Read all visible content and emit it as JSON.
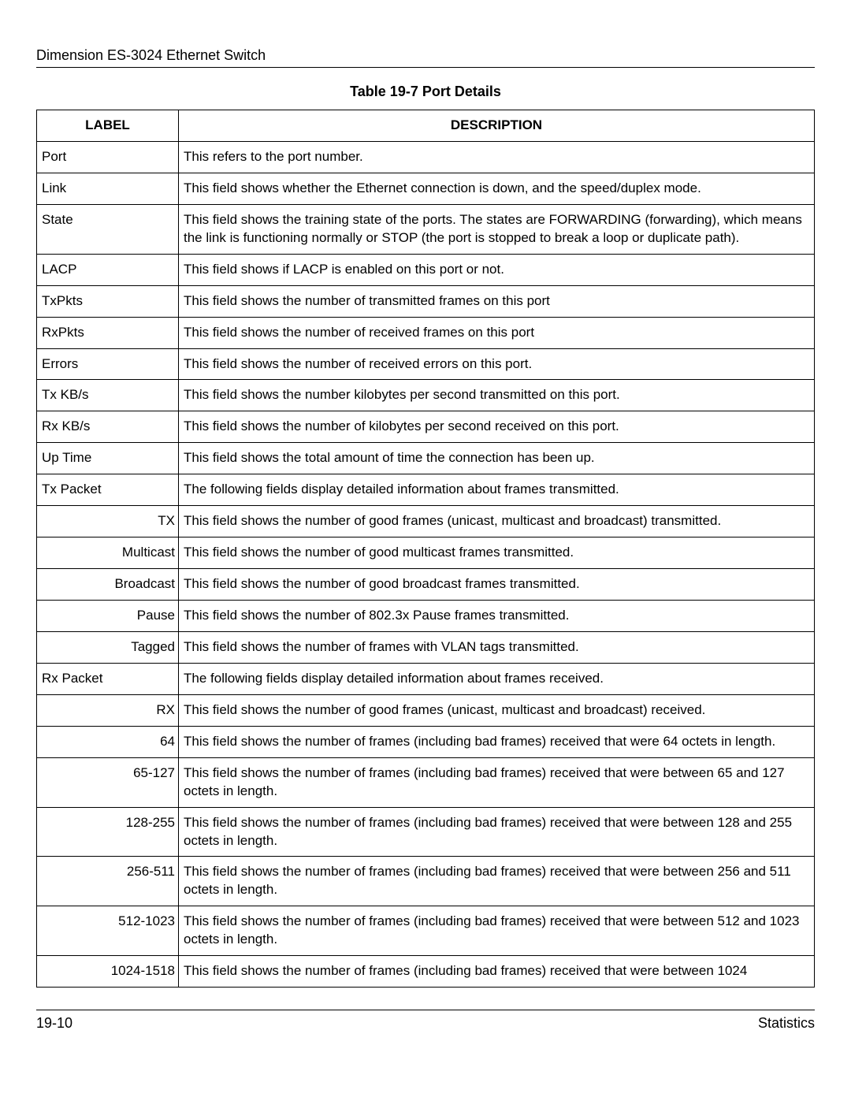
{
  "header": {
    "title": "Dimension ES-3024 Ethernet Switch"
  },
  "table": {
    "caption": "Table 19-7 Port Details",
    "columns": {
      "label": "LABEL",
      "description": "DESCRIPTION"
    },
    "rows": [
      {
        "label": "Port",
        "align": "left",
        "description": "This refers to the port number."
      },
      {
        "label": "Link",
        "align": "left",
        "description": "This field shows whether the Ethernet connection is down, and the speed/duplex mode."
      },
      {
        "label": "State",
        "align": "left",
        "description": "This field shows the training state of the ports. The states are FORWARDING (forwarding), which means the link is functioning normally or STOP (the port is stopped to break a loop or duplicate path)."
      },
      {
        "label": "LACP",
        "align": "left",
        "description": "This field shows if LACP is enabled on this port or not."
      },
      {
        "label": "TxPkts",
        "align": "left",
        "description": "This field shows the number of transmitted frames on this port"
      },
      {
        "label": "RxPkts",
        "align": "left",
        "description": "This field shows the number of received frames on this port"
      },
      {
        "label": "Errors",
        "align": "left",
        "description": "This field shows the number of received errors on this port."
      },
      {
        "label": "Tx KB/s",
        "align": "left",
        "description": "This field shows the number kilobytes per second transmitted on this port."
      },
      {
        "label": "Rx KB/s",
        "align": "left",
        "description": "This field shows the number of kilobytes per second received on this port."
      },
      {
        "label": "Up Time",
        "align": "left",
        "description": "This field shows the total amount of time the connection has been up."
      },
      {
        "label": "Tx Packet",
        "align": "left",
        "description": "The following fields display detailed information about frames transmitted."
      },
      {
        "label": "TX",
        "align": "right",
        "description": "This field shows the number of good frames (unicast, multicast and broadcast) transmitted."
      },
      {
        "label": "Multicast",
        "align": "right",
        "description": "This field shows the number of good multicast frames transmitted."
      },
      {
        "label": "Broadcast",
        "align": "right",
        "description": "This field shows the number of good broadcast frames transmitted."
      },
      {
        "label": "Pause",
        "align": "right",
        "description": "This field shows the number of 802.3x Pause frames transmitted."
      },
      {
        "label": "Tagged",
        "align": "right",
        "description": "This field shows the number of frames with VLAN tags transmitted."
      },
      {
        "label": "Rx Packet",
        "align": "left",
        "description": "The following fields display detailed information about frames received."
      },
      {
        "label": "RX",
        "align": "right",
        "description": "This field shows the number of good frames (unicast, multicast and broadcast) received."
      },
      {
        "label": "64",
        "align": "right",
        "description": "This field shows the number of frames (including bad frames) received that were 64 octets in length."
      },
      {
        "label": "65-127",
        "align": "right",
        "description": "This field shows the number of frames (including bad frames) received that were between 65 and 127 octets in length."
      },
      {
        "label": "128-255",
        "align": "right",
        "description": "This field shows the number of frames (including bad frames) received that were between 128 and 255 octets in length."
      },
      {
        "label": "256-511",
        "align": "right",
        "description": "This field shows the number of frames (including bad frames) received that were between 256 and 511 octets in length."
      },
      {
        "label": "512-1023",
        "align": "right",
        "description": "This field shows the number of frames (including bad frames) received that were between 512 and 1023 octets in length."
      },
      {
        "label": "1024-1518",
        "align": "right",
        "description": "This field shows the number of frames (including bad frames) received that were between 1024"
      }
    ]
  },
  "footer": {
    "page": "19-10",
    "section": "Statistics"
  }
}
